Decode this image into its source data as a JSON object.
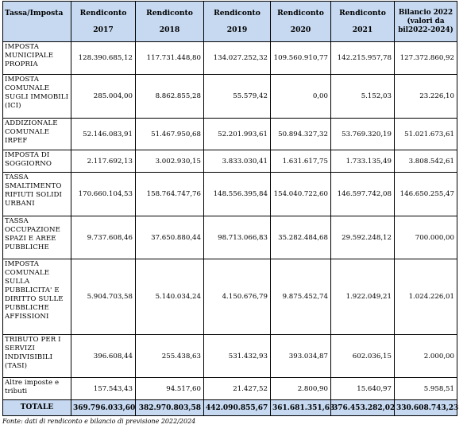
{
  "table": {
    "headers": [
      {
        "line1": "Tassa/Imposta",
        "line2": ""
      },
      {
        "line1": "Rendiconto",
        "line2": "2017"
      },
      {
        "line1": "Rendiconto",
        "line2": "2018"
      },
      {
        "line1": "Rendiconto",
        "line2": "2019"
      },
      {
        "line1": "Rendiconto",
        "line2": "2020"
      },
      {
        "line1": "Rendiconto",
        "line2": "2021"
      },
      {
        "line1": "Bilancio 2022 (valori da bil2022-2024)",
        "line2": ""
      }
    ],
    "rows": [
      {
        "label": "IMPOSTA MUNICIPALE PROPRIA",
        "values": [
          "128.390.685,12",
          "117.731.448,80",
          "134.027.252,32",
          "109.560.910,77",
          "142.215.957,78",
          "127.372.860,92"
        ]
      },
      {
        "label": "IMPOSTA COMUNALE SUGLI IMMOBILI (ICI)",
        "values": [
          "285.004,00",
          "8.862.855,28",
          "55.579,42",
          "0,00",
          "5.152,03",
          "23.226,10"
        ]
      },
      {
        "label": "ADDIZIONALE COMUNALE IRPEF",
        "values": [
          "52.146.083,91",
          "51.467.950,68",
          "52.201.993,61",
          "50.894.327,32",
          "53.769.320,19",
          "51.021.673,61"
        ]
      },
      {
        "label": "IMPOSTA DI SOGGIORNO",
        "values": [
          "2.117.692,13",
          "3.002.930,15",
          "3.833.030,41",
          "1.631.617,75",
          "1.733.135,49",
          "3.808.542,61"
        ]
      },
      {
        "label": "TASSA SMALTIMENTO RIFIUTI SOLIDI URBANI",
        "values": [
          "170.660.104,53",
          "158.764.747,76",
          "148.556.395,84",
          "154.040.722,60",
          "146.597.742,08",
          "146.650.255,47"
        ]
      },
      {
        "label": "TASSA OCCUPAZIONE SPAZI E AREE PUBBLICHE",
        "values": [
          "9.737.608,46",
          "37.650.880,44",
          "98.713.066,83",
          "35.282.484,68",
          "29.592.248,12",
          "700.000,00"
        ]
      },
      {
        "label": "IMPOSTA COMUNALE SULLA PUBBLICITA' E DIRITTO SULLE PUBBLICHE AFFISSIONI",
        "values": [
          "5.904.703,58",
          "5.140.034,24",
          "4.150.676,79",
          "9.875.452,74",
          "1.922.049,21",
          "1.024.226,01"
        ]
      },
      {
        "label": "TRIBUTO PER I SERVIZI INDIVISIBILI (TASI)",
        "values": [
          "396.608,44",
          "255.438,63",
          "531.432,93",
          "393.034,87",
          "602.036,15",
          "2.000,00"
        ]
      },
      {
        "label": "Altre imposte e tributi",
        "values": [
          "157.543,43",
          "94.517,60",
          "21.427,52",
          "2.800,90",
          "15.640,97",
          "5.958,51"
        ]
      }
    ],
    "total": {
      "label": "TOTALE",
      "values": [
        "369.796.033,60",
        "382.970.803,58",
        "442.090.855,67",
        "361.681.351,63",
        "376.453.282,02",
        "330.608.743,23"
      ]
    }
  },
  "source_note": "Fonte: dati di rendiconto e bilancio di previsione 2022/2024"
}
